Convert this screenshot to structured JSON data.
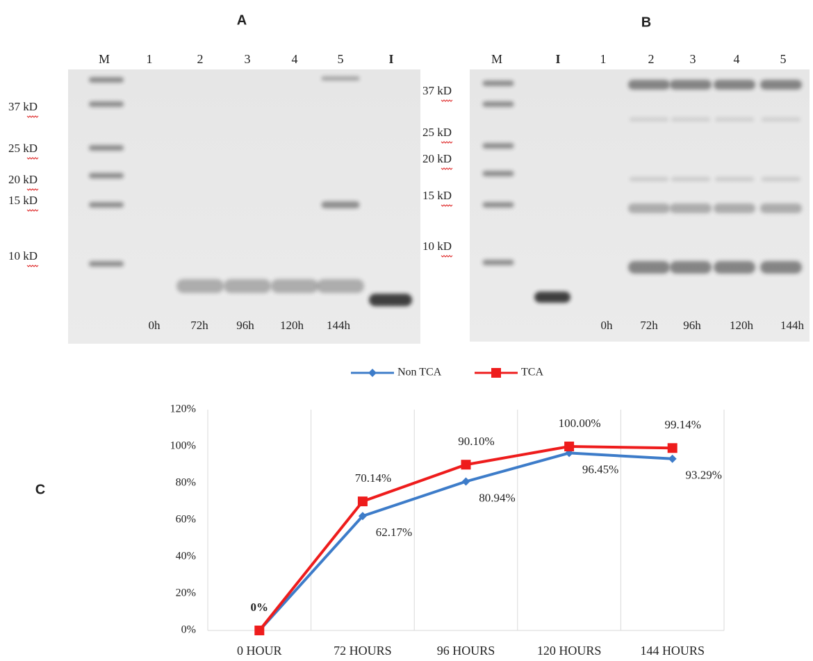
{
  "gel_a": {
    "label": "A",
    "lanes": [
      "M",
      "1",
      "2",
      "3",
      "4",
      "5",
      "I"
    ],
    "markers": [
      "37 kD",
      "25 kD",
      "20 kD",
      "15 kD",
      "10 kD"
    ],
    "times": [
      "0h",
      "72h",
      "96h",
      "120h",
      "144h"
    ]
  },
  "gel_b": {
    "label": "B",
    "lanes": [
      "M",
      "I",
      "1",
      "2",
      "3",
      "4",
      "5"
    ],
    "markers": [
      "37 kD",
      "25 kD",
      "20 kD",
      "15 kD",
      "10 kD"
    ],
    "times": [
      "0h",
      "72h",
      "96h",
      "120h",
      "144h"
    ]
  },
  "chart_data": {
    "type": "line",
    "label": "C",
    "categories": [
      "0 HOUR",
      "72 HOURS",
      "96 HOURS",
      "120 HOURS",
      "144 HOURS"
    ],
    "series": [
      {
        "name": "Non TCA",
        "color": "#3d7cc9",
        "marker": "diamond",
        "values": [
          0,
          62.17,
          80.94,
          96.45,
          93.29
        ],
        "value_labels": [
          null,
          "62.17%",
          "80.94%",
          "96.45%",
          "93.29%"
        ]
      },
      {
        "name": "TCA",
        "color": "#ee1c1c",
        "marker": "square",
        "values": [
          0,
          70.14,
          90.1,
          100.0,
          99.14
        ],
        "value_labels": [
          "0%",
          "70.14%",
          "90.10%",
          "100.00%",
          "99.14%"
        ]
      }
    ],
    "ylim": [
      0,
      120
    ],
    "yticks": [
      {
        "value": 0,
        "label": "0%"
      },
      {
        "value": 20,
        "label": "20%"
      },
      {
        "value": 40,
        "label": "40%"
      },
      {
        "value": 60,
        "label": "60%"
      },
      {
        "value": 80,
        "label": "80%"
      },
      {
        "value": 100,
        "label": "100%"
      },
      {
        "value": 120,
        "label": "120%"
      }
    ],
    "grid": "x",
    "legend": "top"
  }
}
